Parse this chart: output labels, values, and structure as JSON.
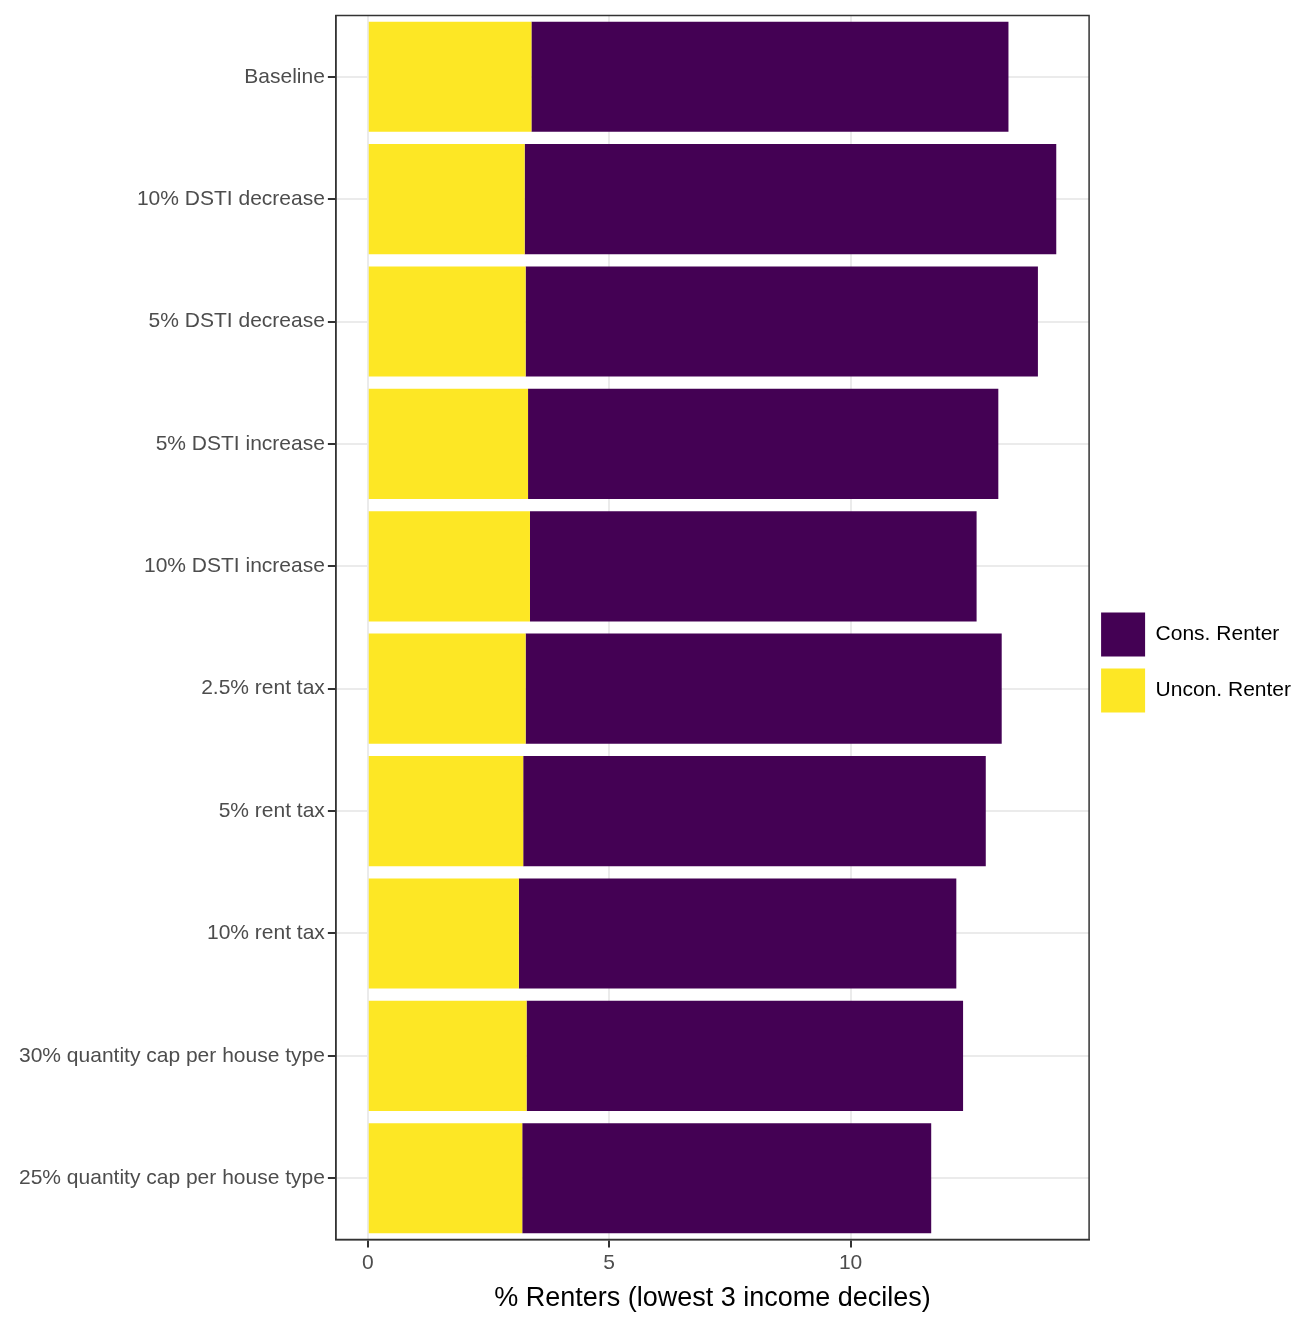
{
  "chart_data": {
    "type": "bar",
    "orientation": "horizontal",
    "stacked": true,
    "xlabel": "% Renters (lowest 3 income deciles)",
    "categories": [
      "Baseline",
      "10% DSTI decrease",
      "5% DSTI decrease",
      "5% DSTI increase",
      "10% DSTI increase",
      "2.5% rent tax",
      "5% rent tax",
      "10% rent tax",
      "30% quantity cap per house type",
      "25% quantity cap per house type"
    ],
    "series": [
      {
        "name": "Uncon. Renter",
        "color": "#fde725",
        "values": [
          3.39,
          3.25,
          3.27,
          3.32,
          3.36,
          3.27,
          3.22,
          3.13,
          3.29,
          3.2
        ]
      },
      {
        "name": "Cons. Renter",
        "color": "#440154",
        "values": [
          9.88,
          11.01,
          10.61,
          9.74,
          9.25,
          9.86,
          9.58,
          9.06,
          9.04,
          8.47
        ]
      }
    ],
    "xlim": [
      -0.66,
      14.94
    ],
    "xticks": [
      0,
      5,
      10
    ],
    "grid": true,
    "legend": "right"
  }
}
